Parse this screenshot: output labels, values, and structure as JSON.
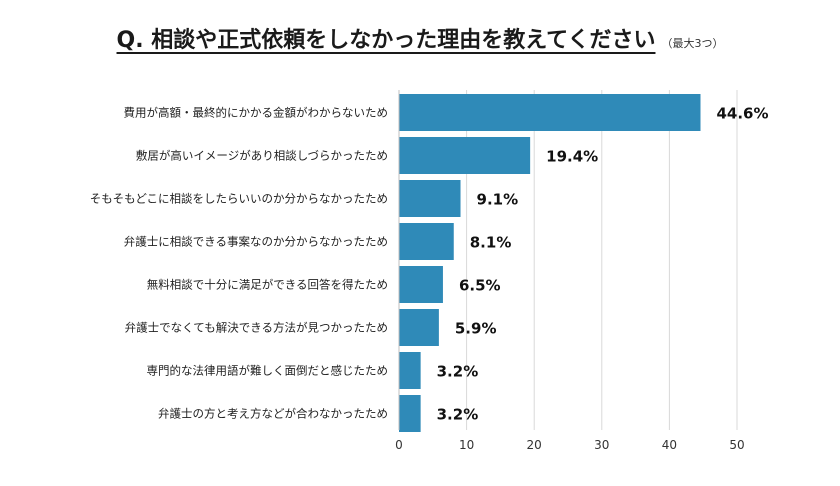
{
  "chart_data": {
    "type": "bar",
    "orientation": "horizontal",
    "title": "Q. 相談や正式依頼をしなかった理由を教えてください",
    "subtitle": "（最大3つ）",
    "categories": [
      "費用が高額・最終的にかかる金額がわからないため",
      "敷居が高いイメージがあり相談しづらかったため",
      "そもそもどこに相談をしたらいいのか分からなかったため",
      "弁護士に相談できる事案なのか分からなかったため",
      "無料相談で十分に満足ができる回答を得たため",
      "弁護士でなくても解決できる方法が見つかったため",
      "専門的な法律用語が難しく面倒だと感じたため",
      "弁護士の方と考え方などが合わなかったため"
    ],
    "values": [
      44.6,
      19.4,
      9.1,
      8.1,
      6.5,
      5.9,
      3.2,
      3.2
    ],
    "value_labels": [
      "44.6%",
      "19.4%",
      "9.1%",
      "8.1%",
      "6.5%",
      "5.9%",
      "3.2%",
      "3.2%"
    ],
    "xlim": [
      0,
      50
    ],
    "xticks": [
      0,
      10,
      20,
      30,
      40,
      50
    ],
    "xtick_labels": [
      "0",
      "10",
      "20",
      "30",
      "40",
      "50"
    ],
    "grid": true,
    "xlabel": "",
    "ylabel": "",
    "colors": {
      "bar": "#2f8ab8",
      "grid": "#d9d9d9",
      "text": "#222222",
      "value": "#111111"
    }
  }
}
